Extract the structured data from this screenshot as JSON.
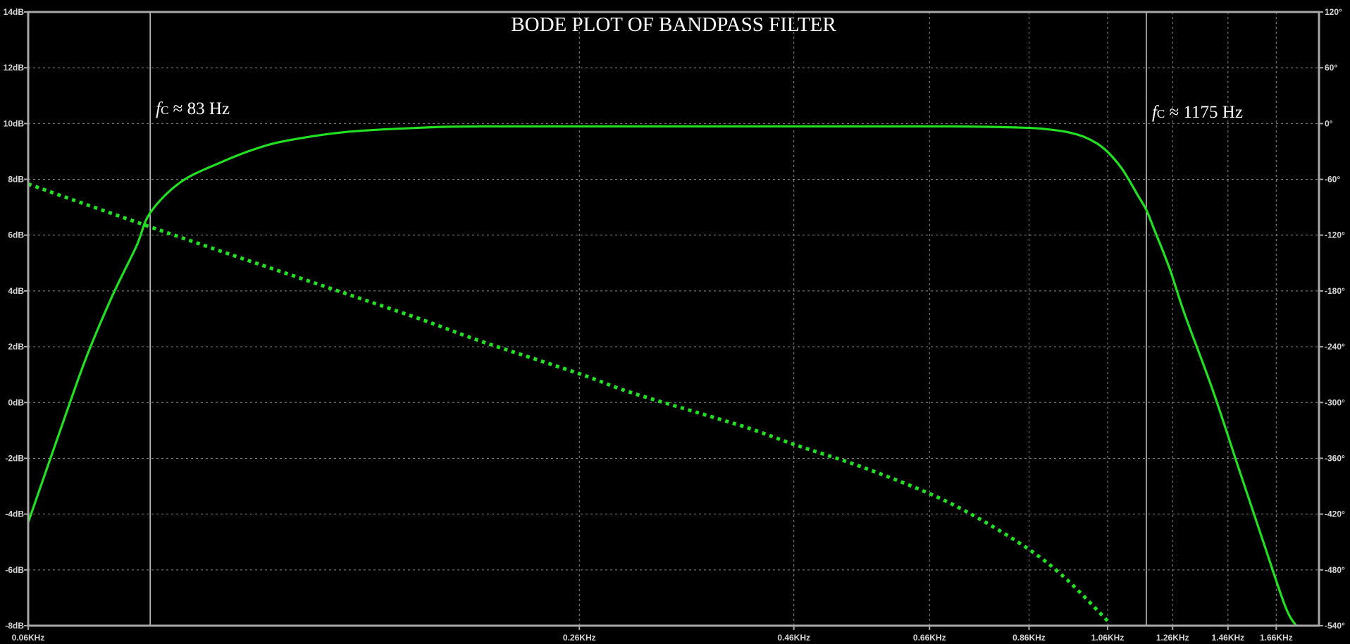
{
  "chart_data": {
    "type": "line",
    "title": "BODE PLOT OF BANDPASS FILTER",
    "x_scale": "log",
    "x_ticks": [
      {
        "value": 0.06,
        "label": "0.06KHz"
      },
      {
        "value": 0.26,
        "label": "0.26KHz"
      },
      {
        "value": 0.46,
        "label": "0.46KHz"
      },
      {
        "value": 0.66,
        "label": "0.66KHz"
      },
      {
        "value": 0.86,
        "label": "0.86KHz"
      },
      {
        "value": 1.06,
        "label": "1.06KHz"
      },
      {
        "value": 1.26,
        "label": "1.26KHz"
      },
      {
        "value": 1.46,
        "label": "1.46KHz"
      },
      {
        "value": 1.66,
        "label": "1.66KHz"
      }
    ],
    "xlim": [
      0.06,
      1.86
    ],
    "y_left": {
      "ylim": [
        -8,
        14
      ],
      "ticks": [
        {
          "value": 14,
          "label": "14dB"
        },
        {
          "value": 12,
          "label": "12dB"
        },
        {
          "value": 10,
          "label": "10dB"
        },
        {
          "value": 8,
          "label": "8dB"
        },
        {
          "value": 6,
          "label": "6dB"
        },
        {
          "value": 4,
          "label": "4dB"
        },
        {
          "value": 2,
          "label": "2dB"
        },
        {
          "value": 0,
          "label": "0dB"
        },
        {
          "value": -2,
          "label": "-2dB"
        },
        {
          "value": -4,
          "label": "-4dB"
        },
        {
          "value": -6,
          "label": "-6dB"
        },
        {
          "value": -8,
          "label": "-8dB"
        }
      ]
    },
    "y_right": {
      "ylim": [
        -540,
        120
      ],
      "ticks": [
        {
          "value": 120,
          "label": "120°"
        },
        {
          "value": 60,
          "label": "60°"
        },
        {
          "value": 0,
          "label": "0°"
        },
        {
          "value": -60,
          "label": "-60°"
        },
        {
          "value": -120,
          "label": "-120°"
        },
        {
          "value": -180,
          "label": "-180°"
        },
        {
          "value": -240,
          "label": "-240°"
        },
        {
          "value": -300,
          "label": "-300°"
        },
        {
          "value": -360,
          "label": "-360°"
        },
        {
          "value": -420,
          "label": "-420°"
        },
        {
          "value": -480,
          "label": "-480°"
        },
        {
          "value": -540,
          "label": "-540°"
        }
      ]
    },
    "grid": true,
    "series": [
      {
        "axis": "left",
        "style": "solid",
        "color": "#22e022",
        "x": [
          0.06,
          0.065,
          0.07,
          0.075,
          0.08,
          0.083,
          0.09,
          0.1,
          0.11,
          0.12,
          0.14,
          0.17,
          0.2,
          0.3,
          0.5,
          0.7,
          0.85,
          0.9,
          0.95,
          1.0,
          1.05,
          1.1,
          1.15,
          1.175,
          1.2,
          1.25,
          1.3,
          1.4,
          1.5,
          1.6,
          1.7,
          1.75
        ],
        "y": [
          -4.3,
          -1.2,
          1.6,
          3.8,
          5.6,
          6.8,
          7.9,
          8.6,
          9.1,
          9.4,
          9.7,
          9.85,
          9.9,
          9.9,
          9.9,
          9.9,
          9.85,
          9.8,
          9.7,
          9.5,
          9.1,
          8.4,
          7.4,
          6.9,
          6.2,
          4.8,
          3.2,
          0.5,
          -2.3,
          -4.9,
          -7.3,
          -8.0
        ]
      },
      {
        "axis": "right",
        "style": "dotted",
        "color": "#22e022",
        "x": [
          0.06,
          0.07,
          0.083,
          0.1,
          0.13,
          0.17,
          0.2,
          0.26,
          0.3,
          0.4,
          0.46,
          0.55,
          0.66,
          0.75,
          0.86,
          0.95,
          1.06
        ],
        "y": [
          -65,
          -87,
          -111,
          -137,
          -173,
          -210,
          -234,
          -269,
          -290,
          -325,
          -345,
          -369,
          -398,
          -424,
          -458,
          -490,
          -535
        ]
      }
    ],
    "annotations": [
      {
        "x": 0.083,
        "f_prefix": "f",
        "f_sub": "C",
        "text": " ≈  83  Hz"
      },
      {
        "x": 1.175,
        "f_prefix": "f",
        "f_sub": "C",
        "text": " ≈  1175  Hz"
      }
    ]
  }
}
